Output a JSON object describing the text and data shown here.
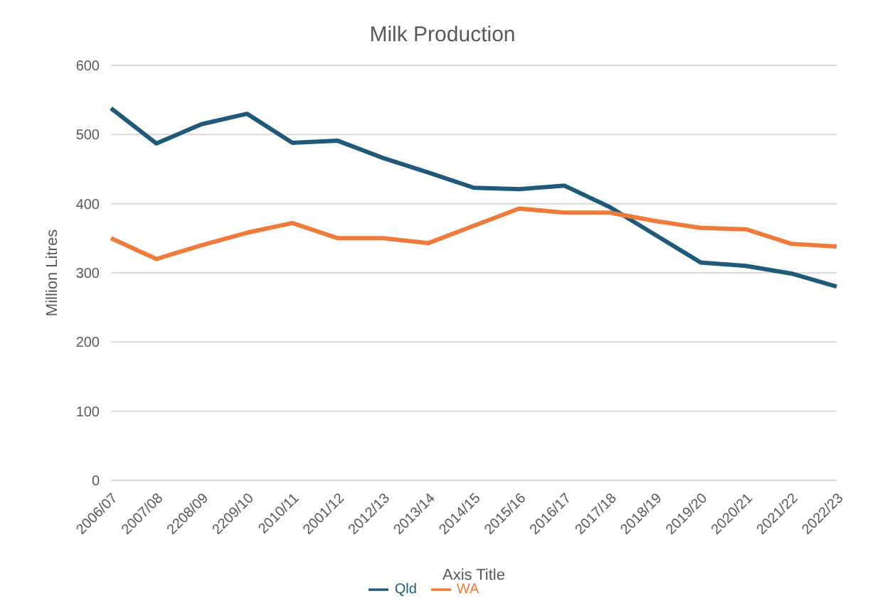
{
  "chart_data": {
    "type": "line",
    "title": "Milk Production",
    "xlabel": "Axis Title",
    "ylabel": "Million Litres",
    "categories": [
      "2006/07",
      "2007/08",
      "2208/09",
      "2209/10",
      "2010/11",
      "2001/12",
      "2012/13",
      "2013/14",
      "2014/15",
      "2015/16",
      "2016/17",
      "2017/18",
      "2018/19",
      "2019/20",
      "2020/21",
      "2021/22",
      "2022/23"
    ],
    "series": [
      {
        "name": "Qld",
        "color": "#1f5a7a",
        "values": [
          538,
          487,
          515,
          530,
          488,
          491,
          466,
          445,
          423,
          421,
          426,
          395,
          355,
          315,
          310,
          299,
          280
        ]
      },
      {
        "name": "WA",
        "color": "#f07a3a",
        "values": [
          350,
          320,
          340,
          358,
          372,
          350,
          350,
          343,
          368,
          393,
          387,
          387,
          375,
          365,
          363,
          342,
          338
        ]
      }
    ],
    "ylim": [
      0,
      600
    ],
    "yticks": [
      0,
      100,
      200,
      300,
      400,
      500,
      600
    ],
    "grid": "y",
    "legend": "bottom",
    "marker": "none",
    "line_style": "solid"
  }
}
